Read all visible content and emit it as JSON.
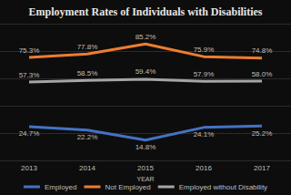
{
  "chart_data": {
    "type": "line",
    "title": "Employment Rates of Individuals with Disabilities",
    "x_label": "YEAR",
    "categories": [
      "2013",
      "2014",
      "2015",
      "2016",
      "2017"
    ],
    "series": [
      {
        "name": "Employed",
        "color": "#4472c4",
        "values": [
          24.7,
          22.2,
          14.8,
          24.1,
          25.2
        ],
        "value_labels": [
          "24.7%",
          "22.2%",
          "14.8%",
          "24.1%",
          "25.2%"
        ]
      },
      {
        "name": "Not Employed",
        "color": "#ed7d31",
        "values": [
          75.3,
          77.8,
          85.2,
          75.9,
          74.8
        ],
        "value_labels": [
          "75.3%",
          "77.8%",
          "85.2%",
          "75.9%",
          "74.8%"
        ]
      },
      {
        "name": "Employed without Disability",
        "color": "#a5a5a5",
        "values": [
          57.3,
          58.5,
          59.4,
          57.9,
          58.0
        ],
        "value_labels": [
          "57.3%",
          "58.5%",
          "59.4%",
          "57.9%",
          "58.0%"
        ]
      }
    ],
    "ylim": [
      0,
      100
    ],
    "yticks": [
      0,
      20,
      40,
      60,
      80,
      100
    ],
    "grid": true,
    "tick_labels": "x",
    "data_labels": true,
    "legend": "bottom"
  }
}
